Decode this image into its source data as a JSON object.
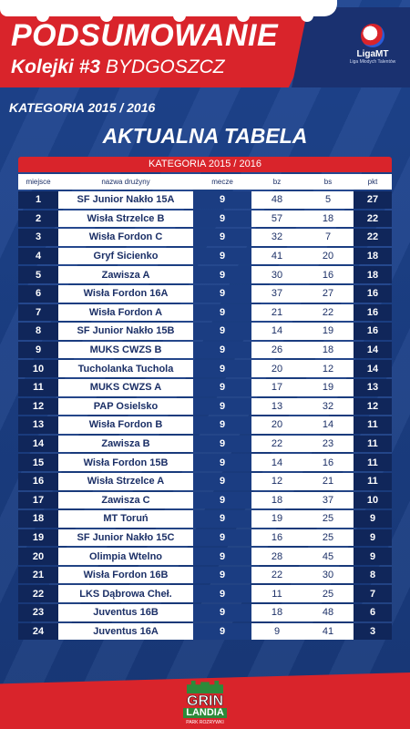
{
  "header": {
    "title": "PODSUMOWANIE",
    "subtitle_bold": "Kolejki #3",
    "subtitle_rest": " BYDGOSZCZ",
    "logo_text": "LigaMT",
    "logo_sub": "Liga Młodych Talentów"
  },
  "category_heading": "KATEGORIA 2015 / 2016",
  "table_title": "AKTUALNA TABELA",
  "table": {
    "category_bar": "KATEGORIA 2015 / 2016",
    "columns": [
      "miejsce",
      "nazwa drużyny",
      "mecze",
      "bz",
      "bs",
      "pkt"
    ],
    "rows": [
      [
        "1",
        "SF Junior Nakło 15A",
        "9",
        "48",
        "5",
        "27"
      ],
      [
        "2",
        "Wisła Strzelce B",
        "9",
        "57",
        "18",
        "22"
      ],
      [
        "3",
        "Wisła Fordon C",
        "9",
        "32",
        "7",
        "22"
      ],
      [
        "4",
        "Gryf Sicienko",
        "9",
        "41",
        "20",
        "18"
      ],
      [
        "5",
        "Zawisza A",
        "9",
        "30",
        "16",
        "18"
      ],
      [
        "6",
        "Wisła Fordon 16A",
        "9",
        "37",
        "27",
        "16"
      ],
      [
        "7",
        "Wisła Fordon A",
        "9",
        "21",
        "22",
        "16"
      ],
      [
        "8",
        "SF Junior Nakło 15B",
        "9",
        "14",
        "19",
        "16"
      ],
      [
        "9",
        "MUKS CWZS B",
        "9",
        "26",
        "18",
        "14"
      ],
      [
        "10",
        "Tucholanka Tuchola",
        "9",
        "20",
        "12",
        "14"
      ],
      [
        "11",
        "MUKS CWZS A",
        "9",
        "17",
        "19",
        "13"
      ],
      [
        "12",
        "PAP Osielsko",
        "9",
        "13",
        "32",
        "12"
      ],
      [
        "13",
        "Wisła Fordon B",
        "9",
        "20",
        "14",
        "11"
      ],
      [
        "14",
        "Zawisza B",
        "9",
        "22",
        "23",
        "11"
      ],
      [
        "15",
        "Wisła Fordon 15B",
        "9",
        "14",
        "16",
        "11"
      ],
      [
        "16",
        "Wisła Strzelce A",
        "9",
        "12",
        "21",
        "11"
      ],
      [
        "17",
        "Zawisza C",
        "9",
        "18",
        "37",
        "10"
      ],
      [
        "18",
        "MT Toruń",
        "9",
        "19",
        "25",
        "9"
      ],
      [
        "19",
        "SF Junior Nakło 15C",
        "9",
        "16",
        "25",
        "9"
      ],
      [
        "20",
        "Olimpia Wtelno",
        "9",
        "28",
        "45",
        "9"
      ],
      [
        "21",
        "Wisła Fordon 16B",
        "9",
        "22",
        "30",
        "8"
      ],
      [
        "22",
        "LKS Dąbrowa Cheł.",
        "9",
        "11",
        "25",
        "7"
      ],
      [
        "23",
        "Juventus 16B",
        "9",
        "18",
        "48",
        "6"
      ],
      [
        "24",
        "Juventus 16A",
        "9",
        "9",
        "41",
        "3"
      ]
    ]
  },
  "footer": {
    "logo_top": "GRIN",
    "logo_bottom": "LANDIA",
    "logo_tagline": "PARK ROZRYWKI"
  },
  "colors": {
    "red": "#d9242b",
    "navy": "#1b3d82",
    "dark_navy": "#10265a"
  }
}
